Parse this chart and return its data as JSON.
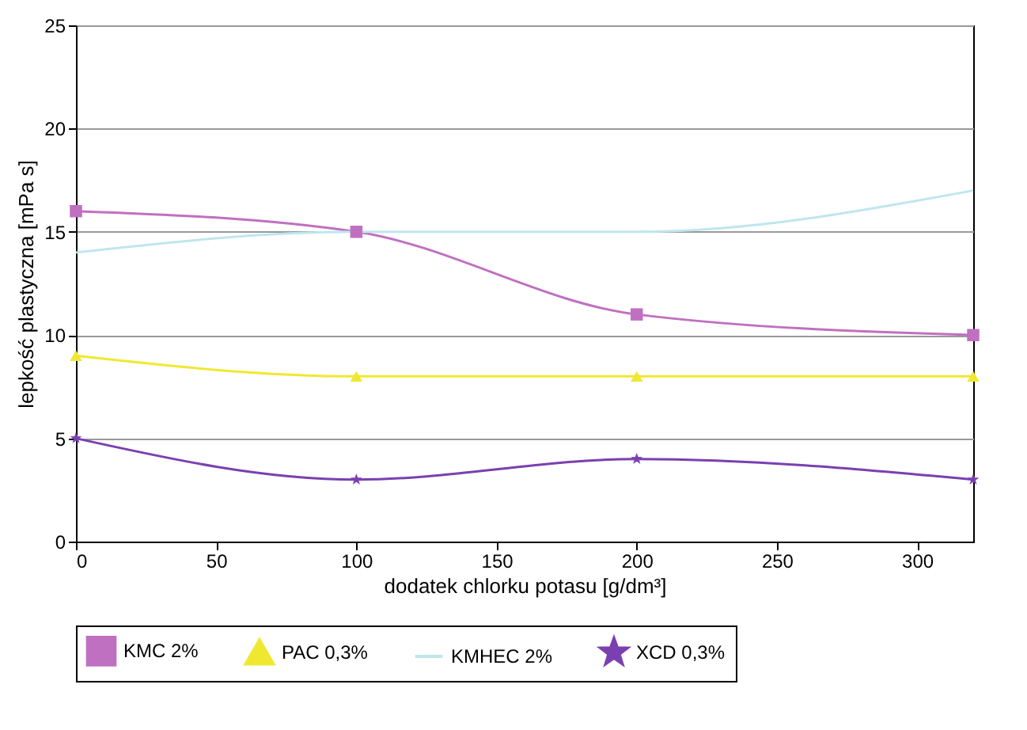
{
  "chart_data": {
    "type": "line",
    "xlabel": "dodatek chlorku potasu [g/dm³]",
    "ylabel": "lepkość plastyczna [mPa s]",
    "x": [
      0,
      100,
      200,
      320
    ],
    "xlim": [
      0,
      320
    ],
    "xticks": [
      0,
      50,
      100,
      150,
      200,
      250,
      300
    ],
    "ylim": [
      0,
      25
    ],
    "yticks": [
      0,
      5,
      10,
      15,
      20,
      25
    ],
    "grid": "y",
    "legend": "bottom",
    "series": [
      {
        "name": "KMC 2%",
        "color": "#c070c0",
        "values": [
          16,
          15,
          11,
          10
        ],
        "marker": "square"
      },
      {
        "name": "PAC 0,3%",
        "color": "#f0e830",
        "values": [
          9,
          8,
          8,
          8
        ],
        "marker": "triangle"
      },
      {
        "name": "KMHEC 2%",
        "color": "#bfe6ee",
        "values": [
          14,
          15,
          15,
          17
        ],
        "marker": "none"
      },
      {
        "name": "XCD 0,3%",
        "color": "#7a40b0",
        "values": [
          5,
          3,
          4,
          3
        ],
        "marker": "star"
      }
    ]
  }
}
